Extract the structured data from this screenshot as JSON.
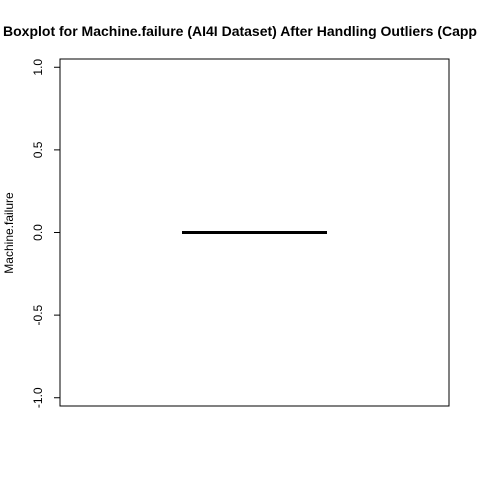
{
  "chart_data": {
    "type": "boxplot",
    "title": "Boxplot for Machine.failure (AI4I Dataset) After Handling Outliers (Capp",
    "xlabel": "",
    "ylabel": "Machine.failure",
    "ylim": [
      -1.05,
      1.05
    ],
    "yticks": [
      -1.0,
      -0.5,
      0.0,
      0.5,
      1.0
    ],
    "ytick_labels": [
      "-1.0",
      "-0.5",
      "0.0",
      "0.5",
      "1.0"
    ],
    "grid": false,
    "box": {
      "min": 0,
      "q1": 0,
      "median": 0,
      "q3": 0,
      "max": 0
    }
  }
}
